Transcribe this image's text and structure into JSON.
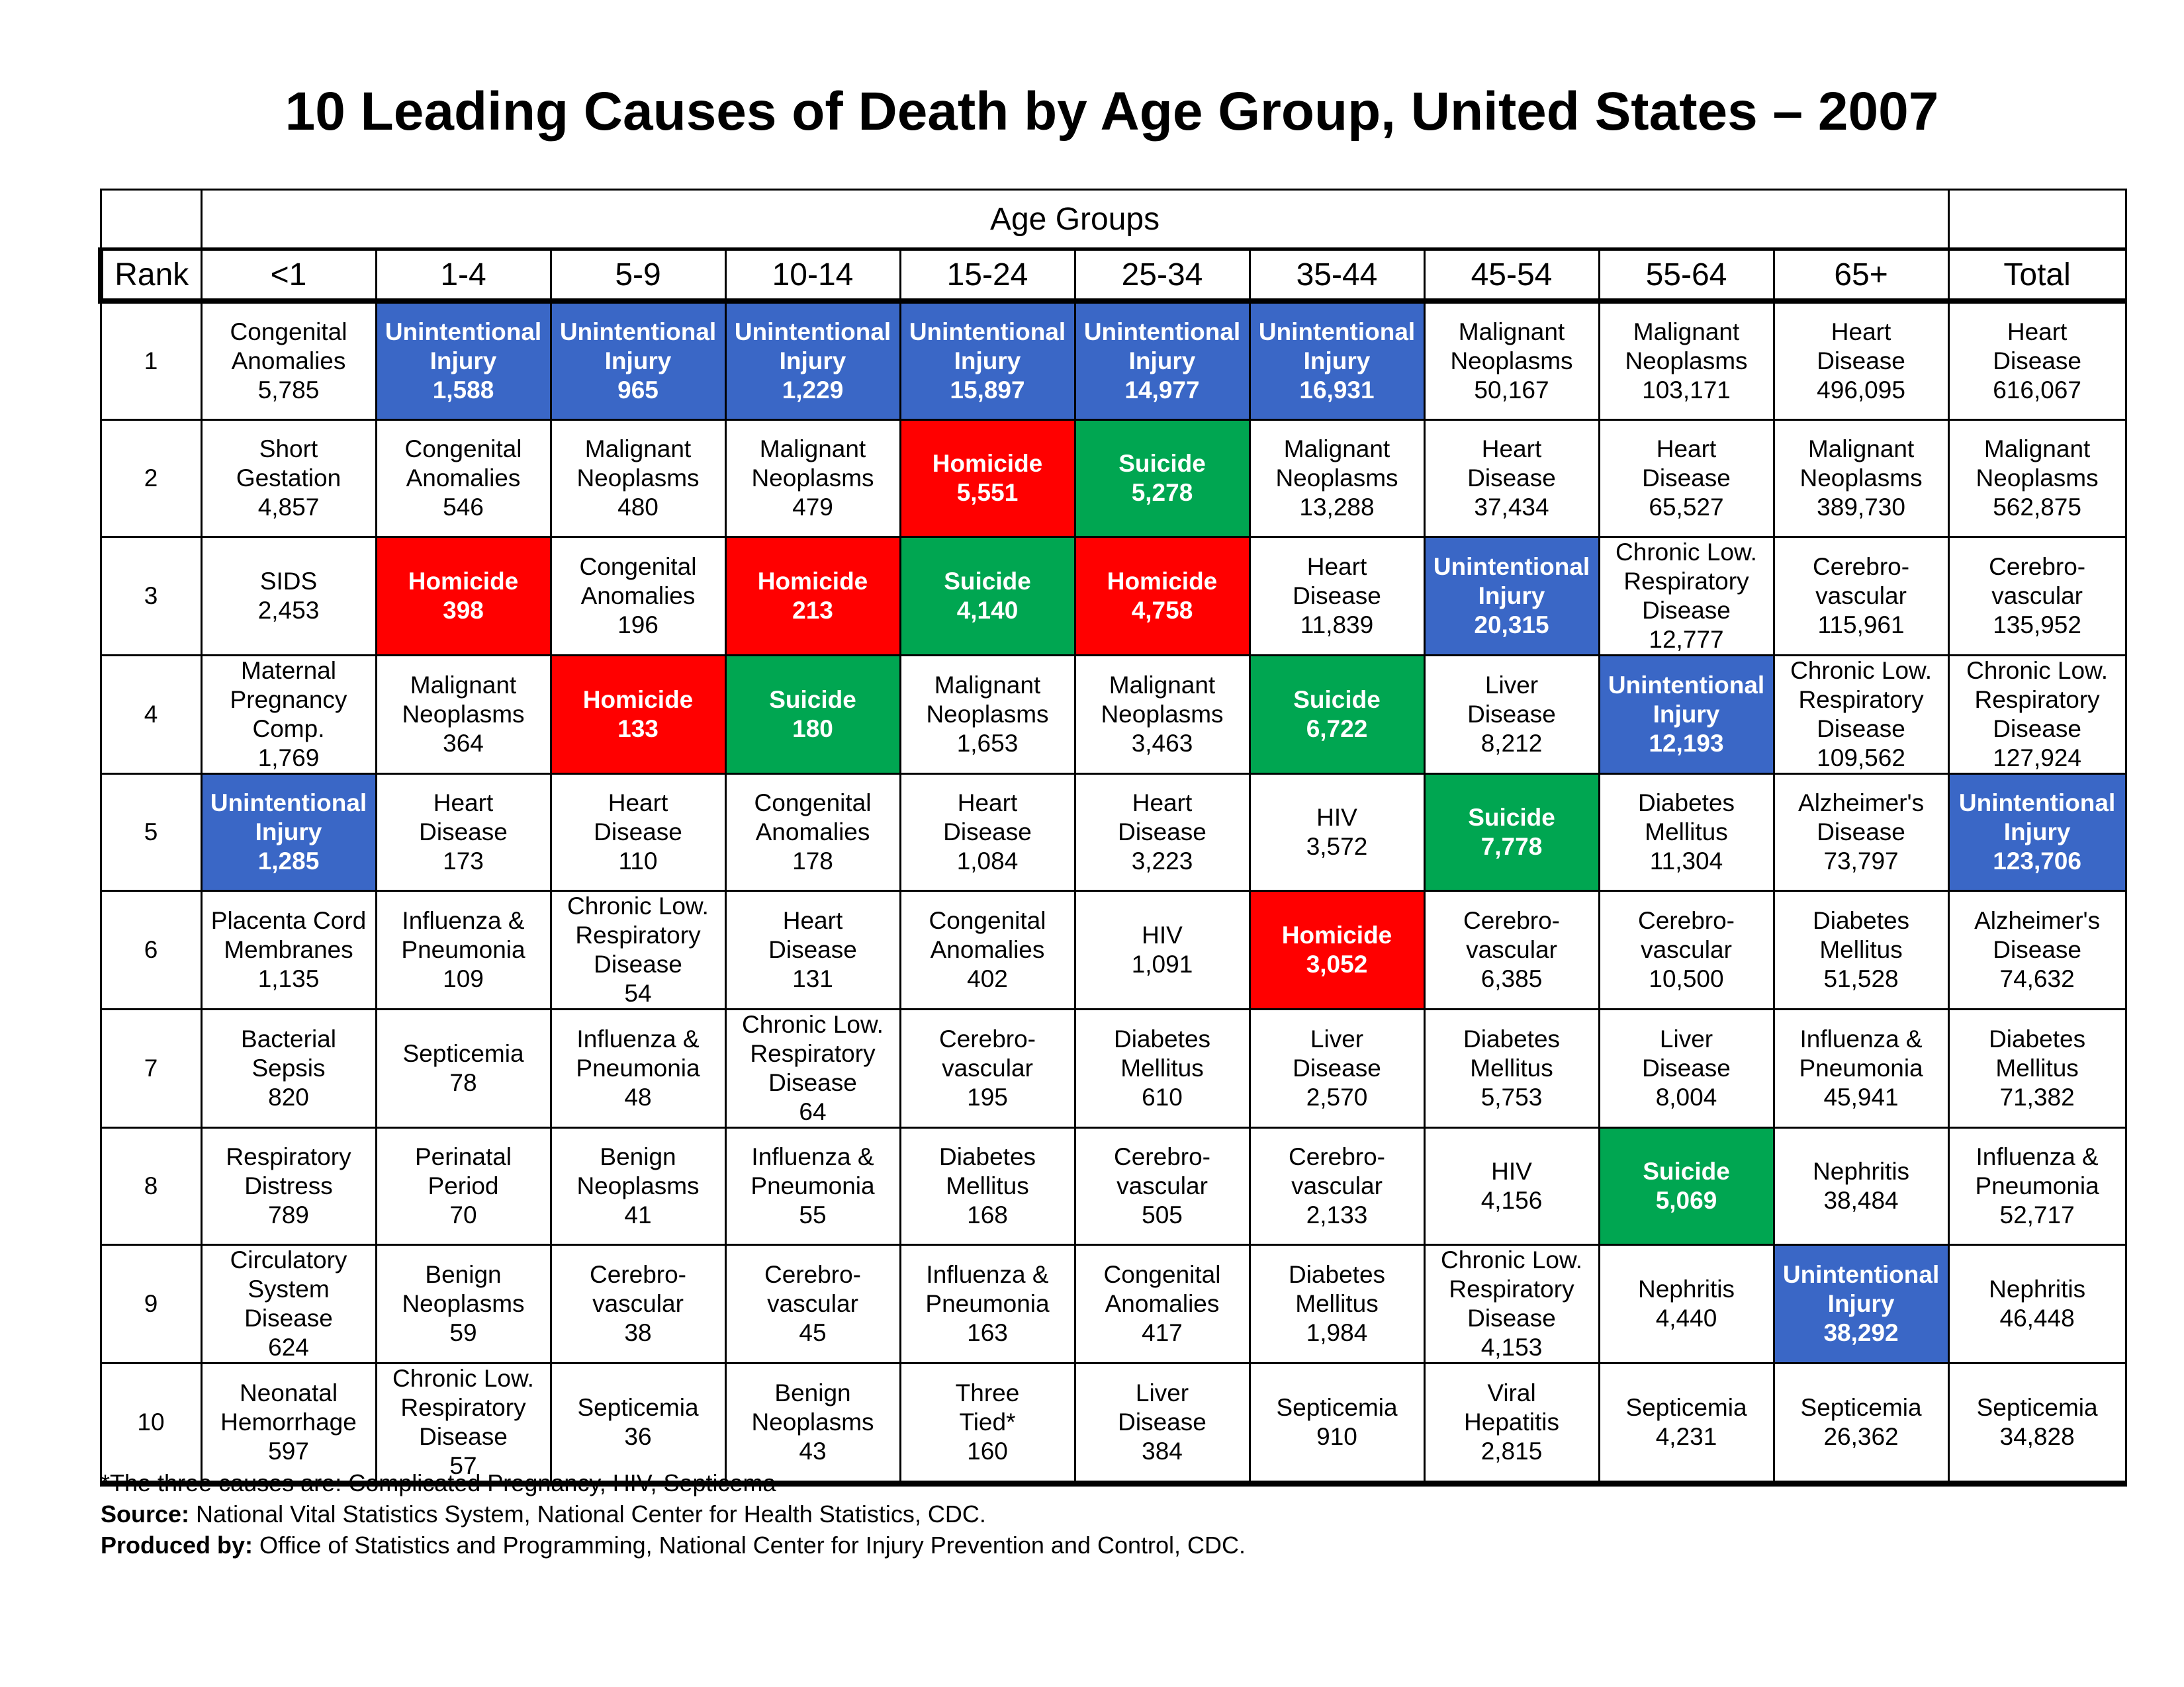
{
  "title": "10 Leading Causes of Death by Age Group, United States – 2007",
  "header": {
    "spanner_label": "Age Groups",
    "rank_label": "Rank",
    "total_label": "Total"
  },
  "colors": {
    "blue": "#3A67C6",
    "red": "#FF0000",
    "green": "#00A651",
    "border": "#000000",
    "text_on_color": "#FFFFFF"
  },
  "footnotes": {
    "note": "*The three causes are: Complicated Pregnancy, HIV, Septicema",
    "source_label": "Source:",
    "source_text": " National Vital Statistics System, National Center for Health Statistics, CDC.",
    "produced_label": "Produced by:",
    "produced_text": " Office of Statistics and Programming, National Center for Injury Prevention and Control, CDC."
  },
  "chart_data": {
    "type": "table",
    "title": "10 Leading Causes of Death by Age Group, United States – 2007",
    "legend": {
      "blue": "Unintentional Injury",
      "red": "Homicide",
      "green": "Suicide"
    },
    "columns": [
      "<1",
      "1-4",
      "5-9",
      "10-14",
      "15-24",
      "25-34",
      "35-44",
      "45-54",
      "55-64",
      "65+",
      "Total"
    ],
    "rows": [
      {
        "rank": "1",
        "cells": [
          {
            "cause": "Congenital\nAnomalies",
            "deaths": "5,785",
            "hl": ""
          },
          {
            "cause": "Unintentional\nInjury",
            "deaths": "1,588",
            "hl": "blue"
          },
          {
            "cause": "Unintentional\nInjury",
            "deaths": "965",
            "hl": "blue"
          },
          {
            "cause": "Unintentional\nInjury",
            "deaths": "1,229",
            "hl": "blue"
          },
          {
            "cause": "Unintentional\nInjury",
            "deaths": "15,897",
            "hl": "blue"
          },
          {
            "cause": "Unintentional\nInjury",
            "deaths": "14,977",
            "hl": "blue"
          },
          {
            "cause": "Unintentional\nInjury",
            "deaths": "16,931",
            "hl": "blue"
          },
          {
            "cause": "Malignant\nNeoplasms",
            "deaths": "50,167",
            "hl": ""
          },
          {
            "cause": "Malignant\nNeoplasms",
            "deaths": "103,171",
            "hl": ""
          },
          {
            "cause": "Heart\nDisease",
            "deaths": "496,095",
            "hl": ""
          },
          {
            "cause": "Heart\nDisease",
            "deaths": "616,067",
            "hl": ""
          }
        ]
      },
      {
        "rank": "2",
        "cells": [
          {
            "cause": "Short\nGestation",
            "deaths": "4,857",
            "hl": ""
          },
          {
            "cause": "Congenital\nAnomalies",
            "deaths": "546",
            "hl": ""
          },
          {
            "cause": "Malignant\nNeoplasms",
            "deaths": "480",
            "hl": ""
          },
          {
            "cause": "Malignant\nNeoplasms",
            "deaths": "479",
            "hl": ""
          },
          {
            "cause": "Homicide",
            "deaths": "5,551",
            "hl": "red"
          },
          {
            "cause": "Suicide",
            "deaths": "5,278",
            "hl": "green"
          },
          {
            "cause": "Malignant\nNeoplasms",
            "deaths": "13,288",
            "hl": ""
          },
          {
            "cause": "Heart\nDisease",
            "deaths": "37,434",
            "hl": ""
          },
          {
            "cause": "Heart\nDisease",
            "deaths": "65,527",
            "hl": ""
          },
          {
            "cause": "Malignant\nNeoplasms",
            "deaths": "389,730",
            "hl": ""
          },
          {
            "cause": "Malignant\nNeoplasms",
            "deaths": "562,875",
            "hl": ""
          }
        ]
      },
      {
        "rank": "3",
        "cells": [
          {
            "cause": "SIDS",
            "deaths": "2,453",
            "hl": ""
          },
          {
            "cause": "Homicide",
            "deaths": "398",
            "hl": "red"
          },
          {
            "cause": "Congenital\nAnomalies",
            "deaths": "196",
            "hl": ""
          },
          {
            "cause": "Homicide",
            "deaths": "213",
            "hl": "red"
          },
          {
            "cause": "Suicide",
            "deaths": "4,140",
            "hl": "green"
          },
          {
            "cause": "Homicide",
            "deaths": "4,758",
            "hl": "red"
          },
          {
            "cause": "Heart\nDisease",
            "deaths": "11,839",
            "hl": ""
          },
          {
            "cause": "Unintentional\nInjury",
            "deaths": "20,315",
            "hl": "blue"
          },
          {
            "cause": "Chronic Low.\nRespiratory\nDisease",
            "deaths": "12,777",
            "hl": ""
          },
          {
            "cause": "Cerebro-\nvascular",
            "deaths": "115,961",
            "hl": ""
          },
          {
            "cause": "Cerebro-\nvascular",
            "deaths": "135,952",
            "hl": ""
          }
        ]
      },
      {
        "rank": "4",
        "cells": [
          {
            "cause": "Maternal\nPregnancy\nComp.",
            "deaths": "1,769",
            "hl": ""
          },
          {
            "cause": "Malignant\nNeoplasms",
            "deaths": "364",
            "hl": ""
          },
          {
            "cause": "Homicide",
            "deaths": "133",
            "hl": "red"
          },
          {
            "cause": "Suicide",
            "deaths": "180",
            "hl": "green"
          },
          {
            "cause": "Malignant\nNeoplasms",
            "deaths": "1,653",
            "hl": ""
          },
          {
            "cause": "Malignant\nNeoplasms",
            "deaths": "3,463",
            "hl": ""
          },
          {
            "cause": "Suicide",
            "deaths": "6,722",
            "hl": "green"
          },
          {
            "cause": "Liver\nDisease",
            "deaths": "8,212",
            "hl": ""
          },
          {
            "cause": "Unintentional\nInjury",
            "deaths": "12,193",
            "hl": "blue"
          },
          {
            "cause": "Chronic Low.\nRespiratory\nDisease",
            "deaths": "109,562",
            "hl": ""
          },
          {
            "cause": "Chronic Low.\nRespiratory\nDisease",
            "deaths": "127,924",
            "hl": ""
          }
        ]
      },
      {
        "rank": "5",
        "cells": [
          {
            "cause": "Unintentional\nInjury",
            "deaths": "1,285",
            "hl": "blue"
          },
          {
            "cause": "Heart\nDisease",
            "deaths": "173",
            "hl": ""
          },
          {
            "cause": "Heart\nDisease",
            "deaths": "110",
            "hl": ""
          },
          {
            "cause": "Congenital\nAnomalies",
            "deaths": "178",
            "hl": ""
          },
          {
            "cause": "Heart\nDisease",
            "deaths": "1,084",
            "hl": ""
          },
          {
            "cause": "Heart\nDisease",
            "deaths": "3,223",
            "hl": ""
          },
          {
            "cause": "HIV",
            "deaths": "3,572",
            "hl": ""
          },
          {
            "cause": "Suicide",
            "deaths": "7,778",
            "hl": "green"
          },
          {
            "cause": "Diabetes\nMellitus",
            "deaths": "11,304",
            "hl": ""
          },
          {
            "cause": "Alzheimer's\nDisease",
            "deaths": "73,797",
            "hl": ""
          },
          {
            "cause": "Unintentional\nInjury",
            "deaths": "123,706",
            "hl": "blue"
          }
        ]
      },
      {
        "rank": "6",
        "cells": [
          {
            "cause": "Placenta Cord\nMembranes",
            "deaths": "1,135",
            "hl": ""
          },
          {
            "cause": "Influenza &\nPneumonia",
            "deaths": "109",
            "hl": ""
          },
          {
            "cause": "Chronic Low.\nRespiratory\nDisease",
            "deaths": "54",
            "hl": ""
          },
          {
            "cause": "Heart\nDisease",
            "deaths": "131",
            "hl": ""
          },
          {
            "cause": "Congenital\nAnomalies",
            "deaths": "402",
            "hl": ""
          },
          {
            "cause": "HIV",
            "deaths": "1,091",
            "hl": ""
          },
          {
            "cause": "Homicide",
            "deaths": "3,052",
            "hl": "red"
          },
          {
            "cause": "Cerebro-\nvascular",
            "deaths": "6,385",
            "hl": ""
          },
          {
            "cause": "Cerebro-\nvascular",
            "deaths": "10,500",
            "hl": ""
          },
          {
            "cause": "Diabetes\nMellitus",
            "deaths": "51,528",
            "hl": ""
          },
          {
            "cause": "Alzheimer's\nDisease",
            "deaths": "74,632",
            "hl": ""
          }
        ]
      },
      {
        "rank": "7",
        "cells": [
          {
            "cause": "Bacterial\nSepsis",
            "deaths": "820",
            "hl": ""
          },
          {
            "cause": "Septicemia",
            "deaths": "78",
            "hl": ""
          },
          {
            "cause": "Influenza &\nPneumonia",
            "deaths": "48",
            "hl": ""
          },
          {
            "cause": "Chronic Low.\nRespiratory\nDisease",
            "deaths": "64",
            "hl": ""
          },
          {
            "cause": "Cerebro-\nvascular",
            "deaths": "195",
            "hl": ""
          },
          {
            "cause": "Diabetes\nMellitus",
            "deaths": "610",
            "hl": ""
          },
          {
            "cause": "Liver\nDisease",
            "deaths": "2,570",
            "hl": ""
          },
          {
            "cause": "Diabetes\nMellitus",
            "deaths": "5,753",
            "hl": ""
          },
          {
            "cause": "Liver\nDisease",
            "deaths": "8,004",
            "hl": ""
          },
          {
            "cause": "Influenza &\nPneumonia",
            "deaths": "45,941",
            "hl": ""
          },
          {
            "cause": "Diabetes\nMellitus",
            "deaths": "71,382",
            "hl": ""
          }
        ]
      },
      {
        "rank": "8",
        "cells": [
          {
            "cause": "Respiratory\nDistress",
            "deaths": "789",
            "hl": ""
          },
          {
            "cause": "Perinatal\nPeriod",
            "deaths": "70",
            "hl": ""
          },
          {
            "cause": "Benign\nNeoplasms",
            "deaths": "41",
            "hl": ""
          },
          {
            "cause": "Influenza &\nPneumonia",
            "deaths": "55",
            "hl": ""
          },
          {
            "cause": "Diabetes\nMellitus",
            "deaths": "168",
            "hl": ""
          },
          {
            "cause": "Cerebro-\nvascular",
            "deaths": "505",
            "hl": ""
          },
          {
            "cause": "Cerebro-\nvascular",
            "deaths": "2,133",
            "hl": ""
          },
          {
            "cause": "HIV",
            "deaths": "4,156",
            "hl": ""
          },
          {
            "cause": "Suicide",
            "deaths": "5,069",
            "hl": "green"
          },
          {
            "cause": "Nephritis",
            "deaths": "38,484",
            "hl": ""
          },
          {
            "cause": "Influenza &\nPneumonia",
            "deaths": "52,717",
            "hl": ""
          }
        ]
      },
      {
        "rank": "9",
        "cells": [
          {
            "cause": "Circulatory\nSystem Disease",
            "deaths": "624",
            "hl": ""
          },
          {
            "cause": "Benign\nNeoplasms",
            "deaths": "59",
            "hl": ""
          },
          {
            "cause": "Cerebro-\nvascular",
            "deaths": "38",
            "hl": ""
          },
          {
            "cause": "Cerebro-\nvascular",
            "deaths": "45",
            "hl": ""
          },
          {
            "cause": "Influenza &\nPneumonia",
            "deaths": "163",
            "hl": ""
          },
          {
            "cause": "Congenital\nAnomalies",
            "deaths": "417",
            "hl": ""
          },
          {
            "cause": "Diabetes\nMellitus",
            "deaths": "1,984",
            "hl": ""
          },
          {
            "cause": "Chronic Low.\nRespiratory\nDisease",
            "deaths": "4,153",
            "hl": ""
          },
          {
            "cause": "Nephritis",
            "deaths": "4,440",
            "hl": ""
          },
          {
            "cause": "Unintentional\nInjury",
            "deaths": "38,292",
            "hl": "blue"
          },
          {
            "cause": "Nephritis",
            "deaths": "46,448",
            "hl": ""
          }
        ]
      },
      {
        "rank": "10",
        "cells": [
          {
            "cause": "Neonatal\nHemorrhage",
            "deaths": "597",
            "hl": ""
          },
          {
            "cause": "Chronic Low.\nRespiratory\nDisease",
            "deaths": "57",
            "hl": ""
          },
          {
            "cause": "Septicemia",
            "deaths": "36",
            "hl": ""
          },
          {
            "cause": "Benign\nNeoplasms",
            "deaths": "43",
            "hl": ""
          },
          {
            "cause": "Three\nTied*",
            "deaths": "160",
            "hl": ""
          },
          {
            "cause": "Liver\nDisease",
            "deaths": "384",
            "hl": ""
          },
          {
            "cause": "Septicemia",
            "deaths": "910",
            "hl": ""
          },
          {
            "cause": "Viral\nHepatitis",
            "deaths": "2,815",
            "hl": ""
          },
          {
            "cause": "Septicemia",
            "deaths": "4,231",
            "hl": ""
          },
          {
            "cause": "Septicemia",
            "deaths": "26,362",
            "hl": ""
          },
          {
            "cause": "Septicemia",
            "deaths": "34,828",
            "hl": ""
          }
        ]
      }
    ]
  }
}
